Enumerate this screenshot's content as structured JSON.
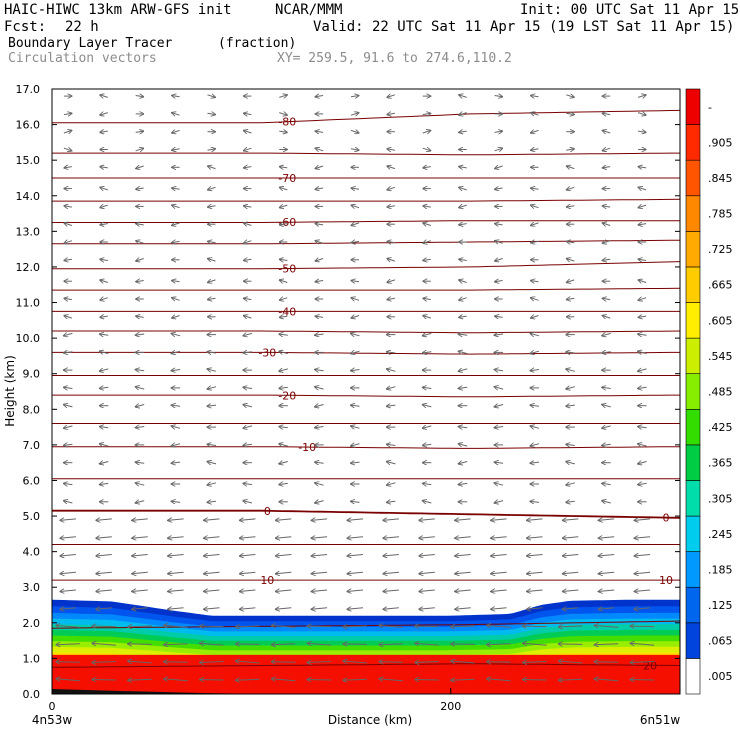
{
  "header": {
    "title": "HAIC-HIWC 13km ARW-GFS init",
    "org": "NCAR/MMM",
    "init": "Init: 00 UTC Sat 11 Apr 15",
    "fcst_label": "Fcst:",
    "fcst_value": "22 h",
    "valid": "Valid: 22 UTC Sat 11 Apr 15 (19 LST Sat 11 Apr 15)",
    "field1": "Boundary Layer Tracer",
    "field1_units": "(fraction)",
    "field2": "Circulation vectors",
    "xy": "XY= 259.5, 91.6 to 274.6,110.2"
  },
  "chart_data": {
    "type": "heatmap",
    "xlabel": "Distance (km)",
    "ylabel": "Height (km)",
    "xlim": [
      0,
      315
    ],
    "ylim": [
      0,
      17
    ],
    "x_ticks": [
      0,
      200
    ],
    "y_ticks": [
      "0.0",
      "1.0",
      "2.0",
      "3.0",
      "4.0",
      "5.0",
      "6.0",
      "7.0",
      "8.0",
      "9.0",
      "10.0",
      "11.0",
      "12.0",
      "13.0",
      "14.0",
      "15.0",
      "16.0",
      "17.0"
    ],
    "x_endpoints": {
      "left": "4n53w",
      "right": "6n51w"
    },
    "colorbar_labels": [
      ".005",
      ".065",
      ".125",
      ".185",
      ".245",
      ".305",
      ".365",
      ".425",
      ".485",
      ".545",
      ".605",
      ".665",
      ".725",
      ".785",
      ".845",
      ".905",
      "-"
    ],
    "colorbar_colors": [
      "#ffffff",
      "#0044dd",
      "#0066ee",
      "#0099ff",
      "#00ccee",
      "#00ddaa",
      "#00cc44",
      "#33dd00",
      "#88ee00",
      "#ccee00",
      "#ffee00",
      "#ffcc00",
      "#ffaa00",
      "#ff8800",
      "#ff5500",
      "#ff2a00",
      "#ee0000"
    ],
    "tracer_top_km": [
      [
        0,
        2.65
      ],
      [
        30,
        2.6
      ],
      [
        60,
        2.35
      ],
      [
        80,
        2.2
      ],
      [
        120,
        2.2
      ],
      [
        160,
        2.2
      ],
      [
        200,
        2.2
      ],
      [
        230,
        2.25
      ],
      [
        245,
        2.5
      ],
      [
        260,
        2.62
      ],
      [
        290,
        2.65
      ],
      [
        315,
        2.65
      ]
    ],
    "temperature_contours": [
      {
        "label": "-80",
        "z": [
          16.05,
          16.05,
          16.3,
          16.4
        ],
        "label_x": 118
      },
      {
        "label": "",
        "z": [
          15.2,
          15.2,
          15.15,
          15.2
        ]
      },
      {
        "label": "-70",
        "z": [
          14.5,
          14.5,
          14.5,
          14.5
        ],
        "label_x": 118
      },
      {
        "label": "",
        "z": [
          13.85,
          13.85,
          13.85,
          13.9
        ]
      },
      {
        "label": "-60",
        "z": [
          13.25,
          13.25,
          13.3,
          13.3
        ],
        "label_x": 118
      },
      {
        "label": "",
        "z": [
          12.65,
          12.65,
          12.7,
          12.75
        ]
      },
      {
        "label": "-50",
        "z": [
          11.95,
          11.95,
          12.0,
          12.15
        ],
        "label_x": 118
      },
      {
        "label": "",
        "z": [
          11.35,
          11.35,
          11.35,
          11.4
        ]
      },
      {
        "label": "-40",
        "z": [
          10.75,
          10.75,
          10.75,
          10.75
        ],
        "label_x": 118
      },
      {
        "label": "",
        "z": [
          10.2,
          10.2,
          10.15,
          10.2
        ]
      },
      {
        "label": "-30",
        "z": [
          9.6,
          9.6,
          9.55,
          9.6
        ],
        "label_x": 108
      },
      {
        "label": "",
        "z": [
          8.95,
          8.95,
          8.95,
          8.95
        ]
      },
      {
        "label": "-20",
        "z": [
          8.4,
          8.4,
          8.35,
          8.4
        ],
        "label_x": 118
      },
      {
        "label": "",
        "z": [
          7.6,
          7.6,
          7.6,
          7.6
        ]
      },
      {
        "label": "-10",
        "z": [
          6.95,
          6.95,
          6.9,
          6.95
        ],
        "label_x": 128
      },
      {
        "label": "",
        "z": [
          6.05,
          6.05,
          6.05,
          6.05
        ]
      },
      {
        "label": "0",
        "z": [
          5.15,
          5.15,
          5.05,
          4.95
        ],
        "label_x": 108,
        "label_x2": 308
      },
      {
        "label": "",
        "z": [
          4.2,
          4.2,
          4.2,
          4.2
        ]
      },
      {
        "label": "10",
        "z": [
          3.2,
          3.2,
          3.2,
          3.2
        ],
        "label_x": 108,
        "label_x2": 308
      },
      {
        "label": "",
        "z": [
          1.85,
          1.9,
          1.95,
          2.05
        ]
      },
      {
        "label": "20",
        "z": [
          0.75,
          0.8,
          0.85,
          0.8
        ],
        "label_x2": 300
      }
    ],
    "vectors": {
      "columns_km": [
        8,
        26,
        44,
        62,
        80,
        98,
        116,
        134,
        152,
        170,
        188,
        206,
        224,
        242,
        260,
        278,
        296
      ],
      "levels_km": [
        0.4,
        0.9,
        1.4,
        1.9,
        2.4,
        2.9,
        3.4,
        3.9,
        4.4,
        4.9,
        5.4,
        5.9,
        6.5,
        7.0,
        7.5,
        8.1,
        8.6,
        9.1,
        9.6,
        10.1,
        10.6,
        11.1,
        11.6,
        12.2,
        12.7,
        13.2,
        13.7,
        14.2,
        14.8,
        15.3,
        15.8,
        16.3,
        16.8
      ]
    }
  }
}
